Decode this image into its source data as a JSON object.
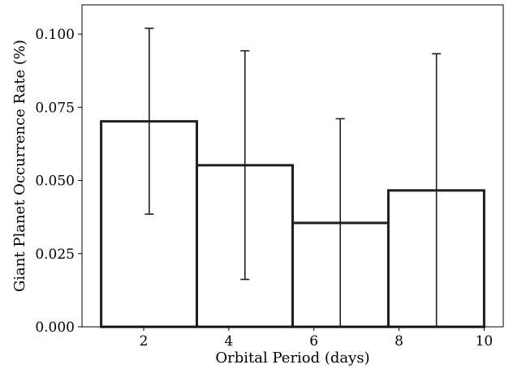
{
  "chart_data": {
    "type": "bar",
    "title": "",
    "xlabel": "Orbital Period (days)",
    "ylabel": "Giant Planet Occurrence Rate (%)",
    "xlim": [
      0.55,
      10.45
    ],
    "ylim": [
      0.0,
      0.11
    ],
    "x_ticks": [
      2,
      4,
      6,
      8,
      10
    ],
    "x_tick_labels": [
      "2",
      "4",
      "6",
      "8",
      "10"
    ],
    "y_ticks": [
      0.0,
      0.025,
      0.05,
      0.075,
      0.1
    ],
    "y_tick_labels": [
      "0.000",
      "0.025",
      "0.050",
      "0.075",
      "0.100"
    ],
    "grid": false,
    "bins": [
      {
        "x_start": 1.0,
        "x_end": 3.25,
        "value": 0.0702,
        "err_x": 2.13,
        "err_low": 0.0385,
        "err_high": 0.102
      },
      {
        "x_start": 3.25,
        "x_end": 5.5,
        "value": 0.0552,
        "err_x": 4.38,
        "err_low": 0.0162,
        "err_high": 0.0943
      },
      {
        "x_start": 5.5,
        "x_end": 7.75,
        "value": 0.0355,
        "err_x": 6.62,
        "err_low": 0.0,
        "err_high": 0.0711
      },
      {
        "x_start": 7.75,
        "x_end": 10.0,
        "value": 0.0466,
        "err_x": 8.88,
        "err_low": 0.0,
        "err_high": 0.0933
      }
    ],
    "colors": {
      "edge": "#1f1f1f",
      "fill": "#ffffff"
    }
  }
}
